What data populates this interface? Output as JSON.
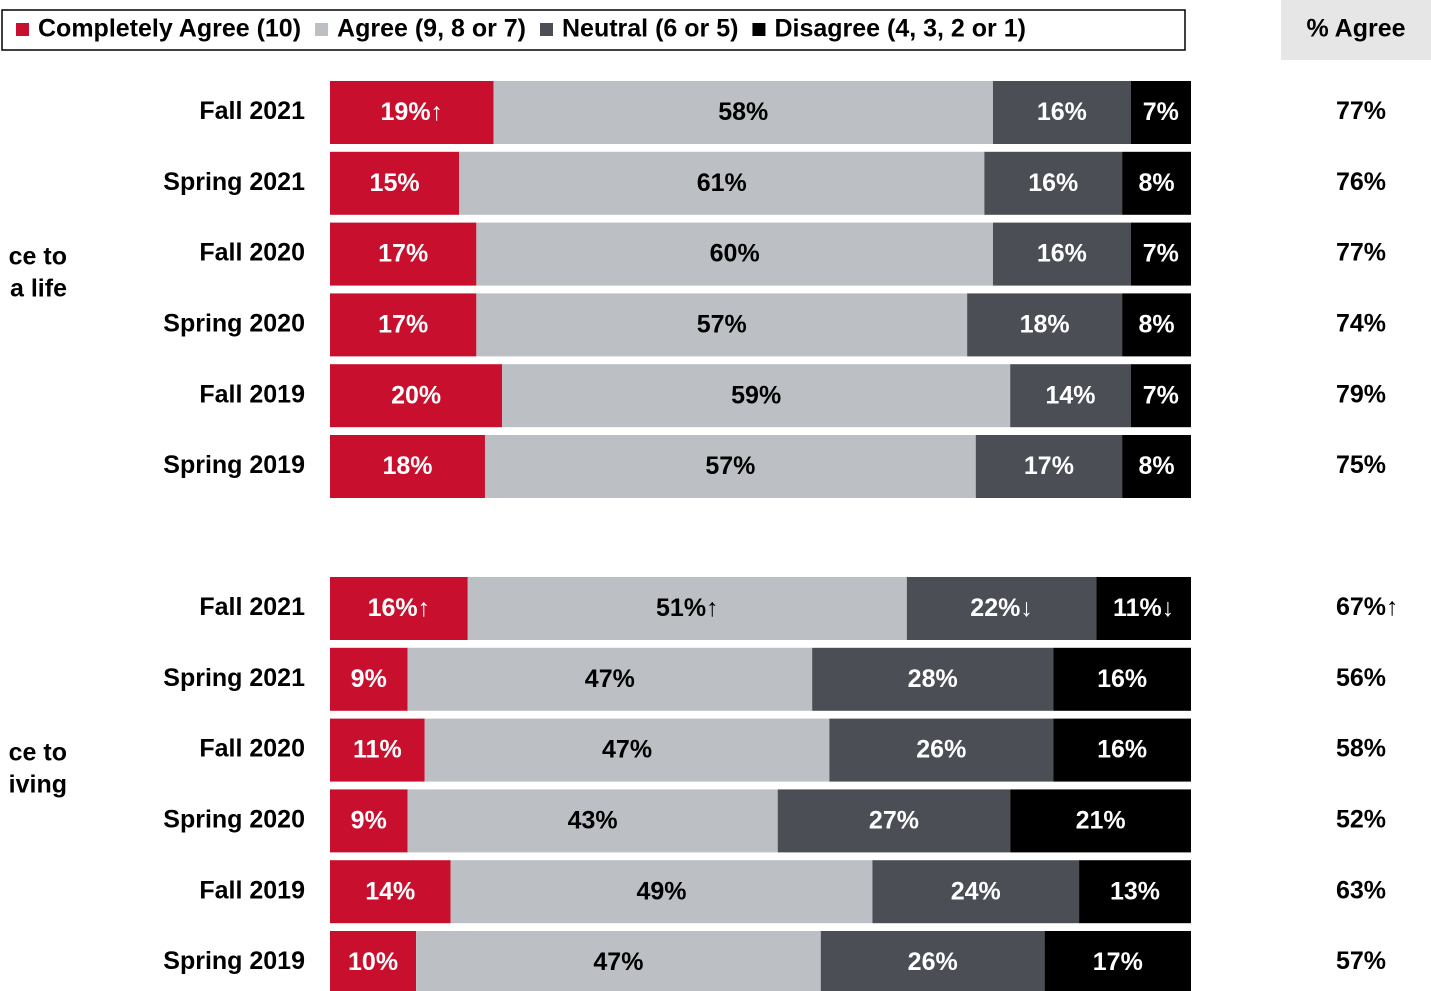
{
  "chart_data": [
    {
      "type": "bar",
      "orientation": "horizontal",
      "stacked": true,
      "group_label": [
        "ce to",
        "a life"
      ],
      "agree_title": "% Agree",
      "categories": [
        "Fall 2021",
        "Spring 2021",
        "Fall 2020",
        "Spring 2020",
        "Fall 2019",
        "Spring 2019"
      ],
      "xlim": [
        0,
        100
      ],
      "series": [
        {
          "name": "Completely Agree (10)",
          "color": "#c8102e",
          "values": [
            19,
            15,
            17,
            17,
            20,
            18
          ],
          "value_labels": [
            "19%↑",
            "15%",
            "17%",
            "17%",
            "20%",
            "18%"
          ]
        },
        {
          "name": "Agree (9, 8 or 7)",
          "color": "#bcc0c4",
          "values": [
            58,
            61,
            60,
            57,
            59,
            57
          ],
          "value_labels": [
            "58%",
            "61%",
            "60%",
            "57%",
            "59%",
            "57%"
          ]
        },
        {
          "name": "Neutral (6 or 5)",
          "color": "#4b4f55",
          "values": [
            16,
            16,
            16,
            18,
            14,
            17
          ],
          "value_labels": [
            "16%",
            "16%",
            "16%",
            "18%",
            "14%",
            "17%"
          ]
        },
        {
          "name": "Disagree (4, 3, 2 or 1)",
          "color": "#000000",
          "values": [
            7,
            8,
            7,
            8,
            7,
            8
          ],
          "value_labels": [
            "7%",
            "8%",
            "7%",
            "8%",
            "7%",
            "8%"
          ]
        }
      ],
      "agree_values": [
        77,
        76,
        77,
        74,
        79,
        75
      ],
      "agree_labels": [
        "77%",
        "76%",
        "77%",
        "74%",
        "79%",
        "75%"
      ]
    },
    {
      "type": "bar",
      "orientation": "horizontal",
      "stacked": true,
      "group_label": [
        "ce to",
        "iving"
      ],
      "categories": [
        "Fall 2021",
        "Spring 2021",
        "Fall 2020",
        "Spring 2020",
        "Fall 2019",
        "Spring 2019"
      ],
      "xlim": [
        0,
        100
      ],
      "series": [
        {
          "name": "Completely Agree (10)",
          "color": "#c8102e",
          "values": [
            16,
            9,
            11,
            9,
            14,
            10
          ],
          "value_labels": [
            "16%↑",
            "9%",
            "11%",
            "9%",
            "14%",
            "10%"
          ]
        },
        {
          "name": "Agree (9, 8 or 7)",
          "color": "#bcc0c4",
          "values": [
            51,
            47,
            47,
            43,
            49,
            47
          ],
          "value_labels": [
            "51%↑",
            "47%",
            "47%",
            "43%",
            "49%",
            "47%"
          ]
        },
        {
          "name": "Neutral (6 or 5)",
          "color": "#4b4f55",
          "values": [
            22,
            28,
            26,
            27,
            24,
            26
          ],
          "value_labels": [
            "22%↓",
            "28%",
            "26%",
            "27%",
            "24%",
            "26%"
          ]
        },
        {
          "name": "Disagree (4, 3, 2 or 1)",
          "color": "#000000",
          "values": [
            11,
            16,
            16,
            21,
            13,
            17
          ],
          "value_labels": [
            "11%↓",
            "16%",
            "16%",
            "21%",
            "13%",
            "17%"
          ]
        }
      ],
      "agree_values": [
        67,
        56,
        58,
        52,
        63,
        57
      ],
      "agree_labels": [
        "67%↑",
        "56%",
        "58%",
        "52%",
        "63%",
        "57%"
      ]
    }
  ]
}
